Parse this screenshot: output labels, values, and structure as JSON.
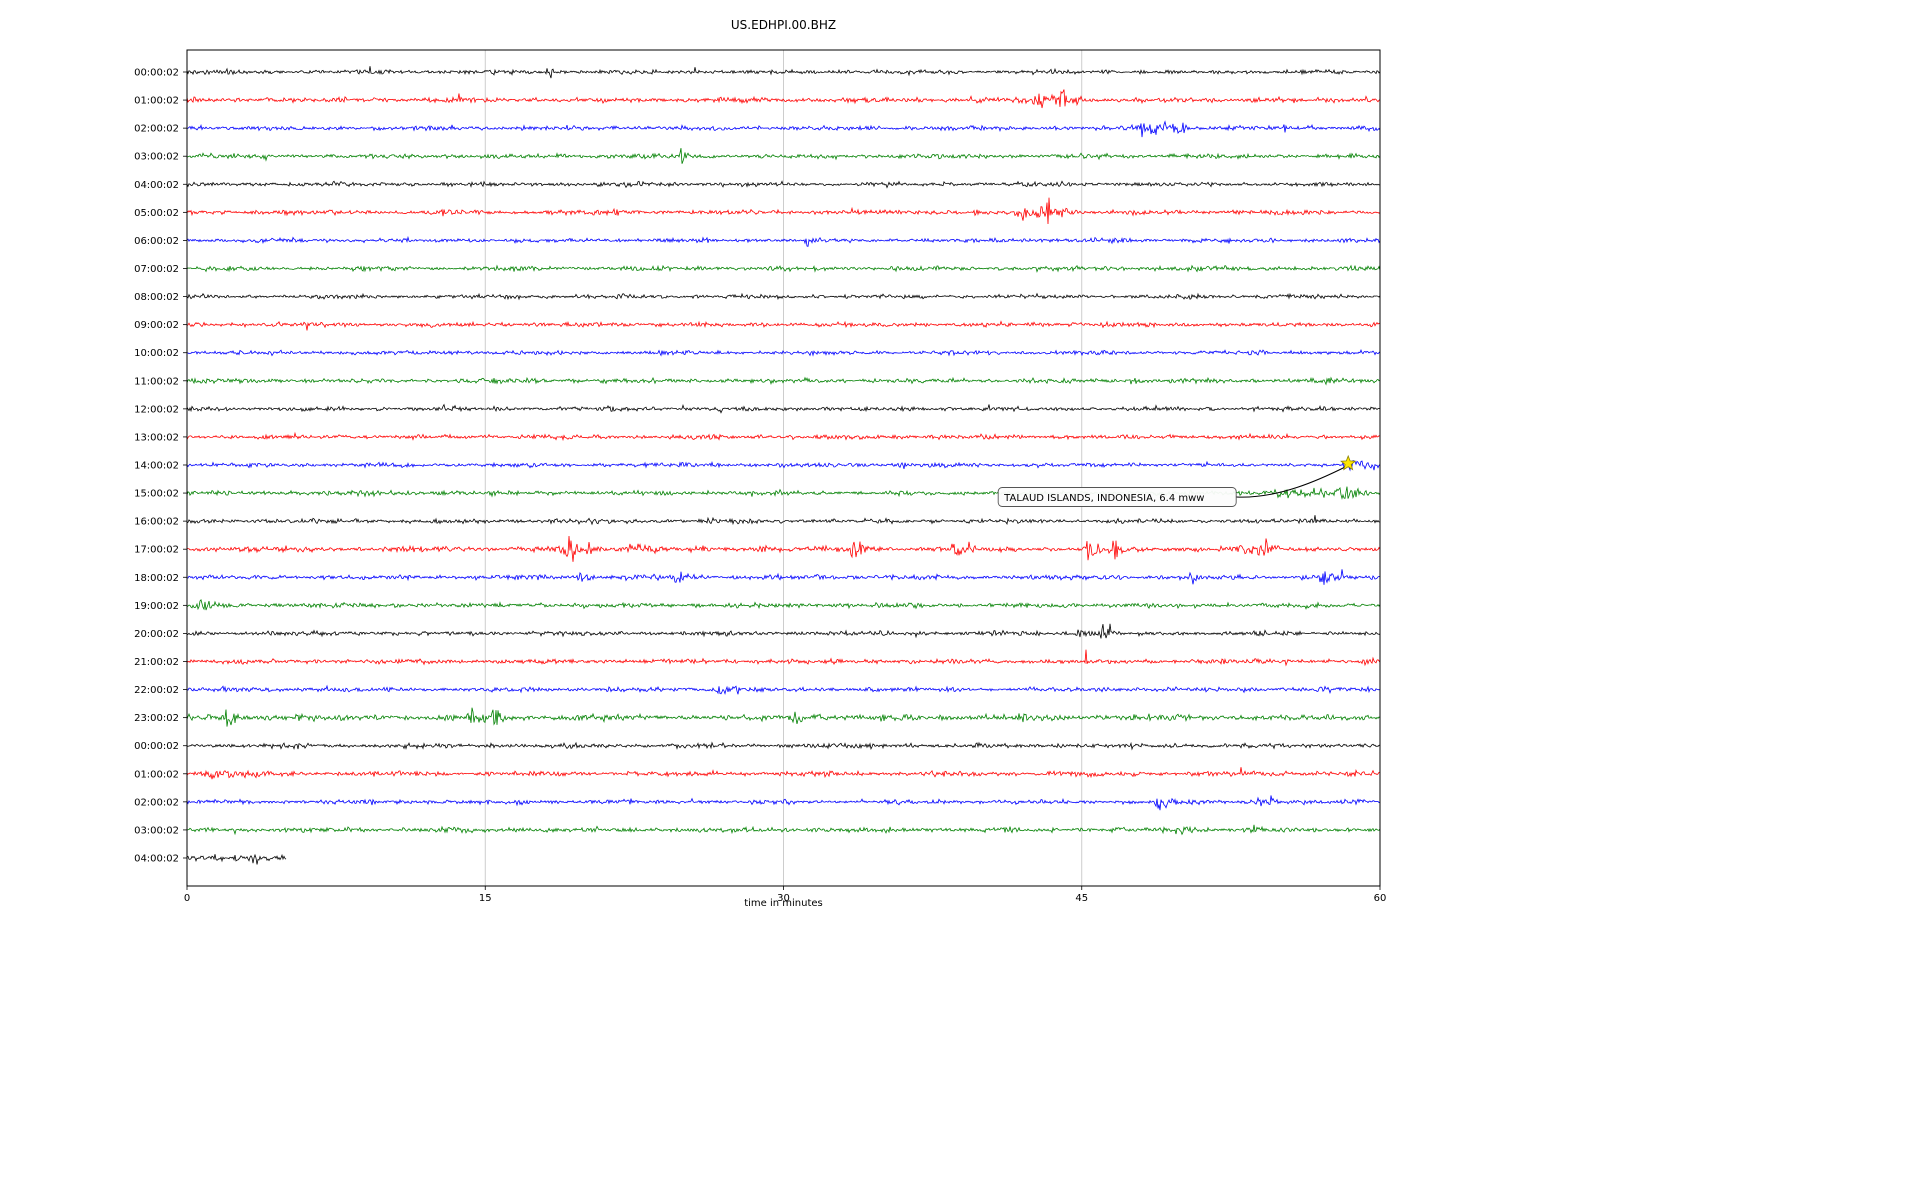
{
  "chart_data": {
    "type": "line",
    "title": "US.EDHPI.00.BHZ",
    "xlabel": "time in minutes",
    "xlim": [
      0,
      60
    ],
    "xticks": [
      0,
      15,
      30,
      45,
      60
    ],
    "minutes_per_row": 60,
    "colors": {
      "black": "#000000",
      "red": "#ff0000",
      "blue": "#0000ff",
      "green": "#008000",
      "grid": "#c8c8c8",
      "star_fill": "#ffe600",
      "star_edge": "#8a8000",
      "annotation_bg": "#fcfcfc",
      "annotation_border": "#555555"
    },
    "rows": [
      {
        "label": "00:00:02",
        "color": "black",
        "noise": 2.0,
        "data_end": 60,
        "events": [
          {
            "t": 18.3,
            "amp": 6,
            "w": 0.08
          },
          {
            "t": 43.5,
            "amp": 3,
            "w": 0.15
          }
        ]
      },
      {
        "label": "01:00:02",
        "color": "red",
        "noise": 2.3,
        "data_end": 60,
        "events": [
          {
            "t": 42.9,
            "amp": 8,
            "w": 0.5
          },
          {
            "t": 44.0,
            "amp": 10,
            "w": 0.35
          },
          {
            "t": 44.8,
            "amp": 5,
            "w": 0.3
          },
          {
            "t": 39.5,
            "amp": 3,
            "w": 0.2
          }
        ]
      },
      {
        "label": "02:00:02",
        "color": "blue",
        "noise": 2.1,
        "data_end": 60,
        "events": [
          {
            "t": 48.3,
            "amp": 8,
            "w": 0.5
          },
          {
            "t": 49.2,
            "amp": 9,
            "w": 0.4
          },
          {
            "t": 50.0,
            "amp": 5,
            "w": 0.3
          },
          {
            "t": 55.2,
            "amp": 11,
            "w": 0.07
          },
          {
            "t": 52.5,
            "amp": 4,
            "w": 0.15
          }
        ]
      },
      {
        "label": "03:00:02",
        "color": "green",
        "noise": 2.1,
        "data_end": 60,
        "events": [
          {
            "t": 24.8,
            "amp": 3,
            "w": 0.3
          },
          {
            "t": 0.8,
            "amp": 3,
            "w": 0.3
          }
        ]
      },
      {
        "label": "04:00:02",
        "color": "black",
        "noise": 2.0,
        "data_end": 60,
        "events": []
      },
      {
        "label": "05:00:02",
        "color": "red",
        "noise": 2.2,
        "data_end": 60,
        "events": [
          {
            "t": 42.2,
            "amp": 8,
            "w": 0.5
          },
          {
            "t": 43.2,
            "amp": 13,
            "w": 0.3
          },
          {
            "t": 44.0,
            "amp": 6,
            "w": 0.4
          },
          {
            "t": 21.5,
            "amp": 3,
            "w": 0.2
          }
        ]
      },
      {
        "label": "06:00:02",
        "color": "blue",
        "noise": 2.0,
        "data_end": 60,
        "events": [
          {
            "t": 31.2,
            "amp": 3.5,
            "w": 0.15
          }
        ]
      },
      {
        "label": "07:00:02",
        "color": "green",
        "noise": 2.1,
        "data_end": 60,
        "events": []
      },
      {
        "label": "08:00:02",
        "color": "black",
        "noise": 1.9,
        "data_end": 60,
        "events": []
      },
      {
        "label": "09:00:02",
        "color": "red",
        "noise": 2.1,
        "data_end": 60,
        "events": []
      },
      {
        "label": "10:00:02",
        "color": "blue",
        "noise": 2.0,
        "data_end": 60,
        "events": []
      },
      {
        "label": "11:00:02",
        "color": "green",
        "noise": 2.1,
        "data_end": 60,
        "events": [
          {
            "t": 47.5,
            "amp": 2.5,
            "w": 0.3
          }
        ]
      },
      {
        "label": "12:00:02",
        "color": "black",
        "noise": 2.0,
        "data_end": 60,
        "events": []
      },
      {
        "label": "13:00:02",
        "color": "red",
        "noise": 2.1,
        "data_end": 60,
        "events": []
      },
      {
        "label": "14:00:02",
        "color": "blue",
        "noise": 2.0,
        "data_end": 60,
        "events": [
          {
            "t": 58.6,
            "amp": 3.5,
            "w": 0.6
          },
          {
            "t": 59.5,
            "amp": 3,
            "w": 0.4
          }
        ]
      },
      {
        "label": "15:00:02",
        "color": "green",
        "noise": 2.2,
        "data_end": 60,
        "events": [
          {
            "t": 55.0,
            "amp": 3,
            "w": 1.5
          },
          {
            "t": 58.0,
            "amp": 3,
            "w": 1.0
          }
        ]
      },
      {
        "label": "16:00:02",
        "color": "black",
        "noise": 2.1,
        "data_end": 60,
        "events": []
      },
      {
        "label": "17:00:02",
        "color": "red",
        "noise": 2.5,
        "data_end": 60,
        "events": [
          {
            "t": 19.2,
            "amp": 12,
            "w": 0.25
          },
          {
            "t": 20.3,
            "amp": 8,
            "w": 0.3
          },
          {
            "t": 22.4,
            "amp": 8,
            "w": 0.35
          },
          {
            "t": 23.2,
            "amp": 6,
            "w": 0.25
          },
          {
            "t": 28.9,
            "amp": 7,
            "w": 0.3
          },
          {
            "t": 33.6,
            "amp": 6,
            "w": 0.35
          },
          {
            "t": 38.5,
            "amp": 6,
            "w": 0.3
          },
          {
            "t": 39.3,
            "amp": 5,
            "w": 0.2
          },
          {
            "t": 45.4,
            "amp": 9,
            "w": 0.4
          },
          {
            "t": 46.6,
            "amp": 7,
            "w": 0.25
          },
          {
            "t": 52.9,
            "amp": 5,
            "w": 0.2
          },
          {
            "t": 53.9,
            "amp": 8,
            "w": 0.5
          }
        ]
      },
      {
        "label": "18:00:02",
        "color": "blue",
        "noise": 2.2,
        "data_end": 60,
        "events": [
          {
            "t": 19.9,
            "amp": 7,
            "w": 0.35
          },
          {
            "t": 24.7,
            "amp": 5,
            "w": 0.3
          },
          {
            "t": 50.5,
            "amp": 5,
            "w": 0.15
          },
          {
            "t": 57.2,
            "amp": 7,
            "w": 0.3
          },
          {
            "t": 58.0,
            "amp": 10,
            "w": 0.07
          }
        ]
      },
      {
        "label": "19:00:02",
        "color": "green",
        "noise": 2.2,
        "data_end": 60,
        "events": [
          {
            "t": 0.6,
            "amp": 3.5,
            "w": 0.4
          }
        ]
      },
      {
        "label": "20:00:02",
        "color": "black",
        "noise": 2.1,
        "data_end": 60,
        "events": [
          {
            "t": 45.1,
            "amp": 7,
            "w": 0.5
          },
          {
            "t": 46.2,
            "amp": 8,
            "w": 0.3
          }
        ]
      },
      {
        "label": "21:00:02",
        "color": "red",
        "noise": 2.2,
        "data_end": 60,
        "events": [
          {
            "t": 45.2,
            "amp": 13,
            "w": 0.06
          }
        ]
      },
      {
        "label": "22:00:02",
        "color": "blue",
        "noise": 2.2,
        "data_end": 60,
        "events": [
          {
            "t": 26.8,
            "amp": 7,
            "w": 0.35
          },
          {
            "t": 27.6,
            "amp": 6,
            "w": 0.25
          }
        ]
      },
      {
        "label": "23:00:02",
        "color": "green",
        "noise": 2.8,
        "data_end": 60,
        "events": [
          {
            "t": 2.1,
            "amp": 6,
            "w": 0.3
          },
          {
            "t": 14.4,
            "amp": 7,
            "w": 0.3
          },
          {
            "t": 15.3,
            "amp": 8,
            "w": 0.4
          },
          {
            "t": 16.1,
            "amp": 5,
            "w": 0.25
          },
          {
            "t": 30.6,
            "amp": 6,
            "w": 0.35
          },
          {
            "t": 31.6,
            "amp": 5,
            "w": 0.25
          }
        ]
      },
      {
        "label": "00:00:02",
        "color": "black",
        "noise": 2.1,
        "data_end": 60,
        "events": []
      },
      {
        "label": "01:00:02",
        "color": "red",
        "noise": 2.3,
        "data_end": 60,
        "events": [
          {
            "t": 1.5,
            "amp": 3,
            "w": 1.2
          },
          {
            "t": 47.6,
            "amp": 4,
            "w": 0.08
          }
        ]
      },
      {
        "label": "02:00:02",
        "color": "blue",
        "noise": 2.1,
        "data_end": 60,
        "events": [
          {
            "t": 48.9,
            "amp": 5,
            "w": 0.5
          },
          {
            "t": 53.7,
            "amp": 7,
            "w": 0.3
          },
          {
            "t": 54.4,
            "amp": 5,
            "w": 0.25
          }
        ]
      },
      {
        "label": "03:00:02",
        "color": "green",
        "noise": 2.2,
        "data_end": 60,
        "events": [
          {
            "t": 49.9,
            "amp": 4,
            "w": 0.4
          },
          {
            "t": 53.7,
            "amp": 6,
            "w": 0.2
          }
        ]
      },
      {
        "label": "04:00:02",
        "color": "black",
        "noise": 2.6,
        "data_end": 5,
        "events": [
          {
            "t": 0.3,
            "amp": 5,
            "w": 0.15
          },
          {
            "t": 1.5,
            "amp": 6,
            "w": 0.15
          },
          {
            "t": 2.4,
            "amp": 7,
            "w": 0.15
          },
          {
            "t": 3.4,
            "amp": 5,
            "w": 0.15
          }
        ]
      }
    ],
    "annotation": {
      "text": "TALAUD ISLANDS, INDONESIA, 6.4 mww",
      "star_row": 14,
      "star_minute": 58.4
    }
  }
}
